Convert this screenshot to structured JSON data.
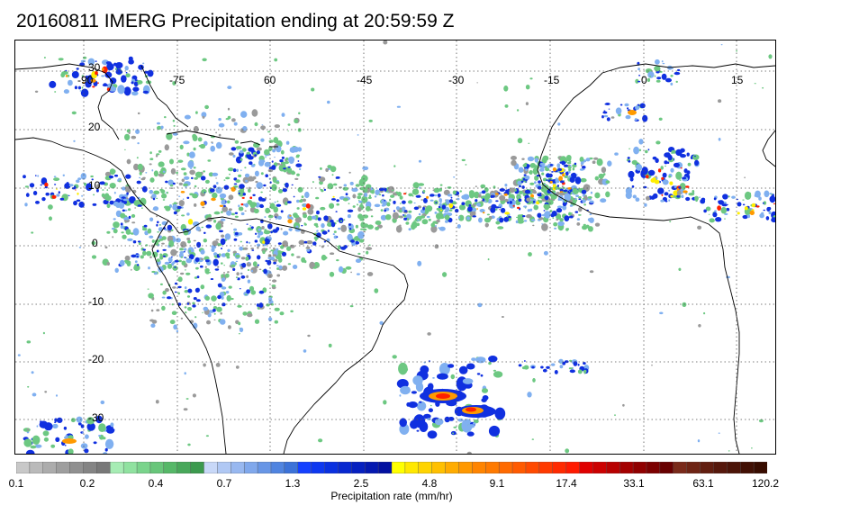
{
  "title": "20160811 IMERG Precipitation ending at 20:59:59 Z",
  "map": {
    "lon_range": [
      -100,
      20
    ],
    "lat_range": [
      -35,
      35
    ],
    "lon_ticks_shown": [
      "-90",
      "-75",
      "60",
      "-45",
      "-30",
      "-15",
      "0",
      "15"
    ],
    "lat_ticks_shown": [
      "30",
      "20",
      "10",
      "0",
      "-10",
      "-20",
      "-30"
    ],
    "grid": "dotted",
    "coastlines": true
  },
  "colorbar": {
    "title": "Precipitation rate (mm/hr)",
    "labels": [
      "0.1",
      "0.2",
      "0.4",
      "0.7",
      "1.3",
      "2.5",
      "4.8",
      "9.1",
      "17.4",
      "33.1",
      "63.1",
      "120.2"
    ],
    "color_groups": [
      {
        "colors": [
          "#c8c8c8",
          "#bababa",
          "#acacac",
          "#9e9e9e",
          "#909090",
          "#848484",
          "#787878"
        ]
      },
      {
        "colors": [
          "#a6ecb4",
          "#90e2a0",
          "#7ad48c",
          "#68c67a",
          "#56b868",
          "#48a85a",
          "#3c9a4e"
        ]
      },
      {
        "colors": [
          "#c8d8f8",
          "#b0c8f4",
          "#98b8f0",
          "#80a8ec",
          "#6896e6",
          "#5084e0",
          "#3c72d8"
        ]
      },
      {
        "colors": [
          "#1440ff",
          "#0e38f0",
          "#0a30e0",
          "#0828d0",
          "#0620c0",
          "#0418b0",
          "#0210a0"
        ]
      },
      {
        "colors": [
          "#ffff00",
          "#ffe800",
          "#ffd400",
          "#ffc000",
          "#ffac00",
          "#ff9800",
          "#ff8400"
        ]
      },
      {
        "colors": [
          "#ff7a00",
          "#ff6a00",
          "#ff5a00",
          "#ff4a00",
          "#ff3a00",
          "#ff2a00",
          "#ff1a00"
        ]
      },
      {
        "colors": [
          "#e00000",
          "#cc0000",
          "#b80000",
          "#a40000",
          "#900000",
          "#7c0000",
          "#680000"
        ]
      },
      {
        "colors": [
          "#7a2a1a",
          "#6e2414",
          "#621e10",
          "#56180c",
          "#4c1408",
          "#421004",
          "#380c00"
        ]
      }
    ],
    "heavy_colors": {
      "core": "#ff2000",
      "mid": "#ff9a00",
      "warm": "#ffee00"
    },
    "light_colors": {
      "green": "#6dc882",
      "grey": "#9a9a9a",
      "lightblue": "#80b0f0",
      "blue": "#1030e0"
    }
  }
}
